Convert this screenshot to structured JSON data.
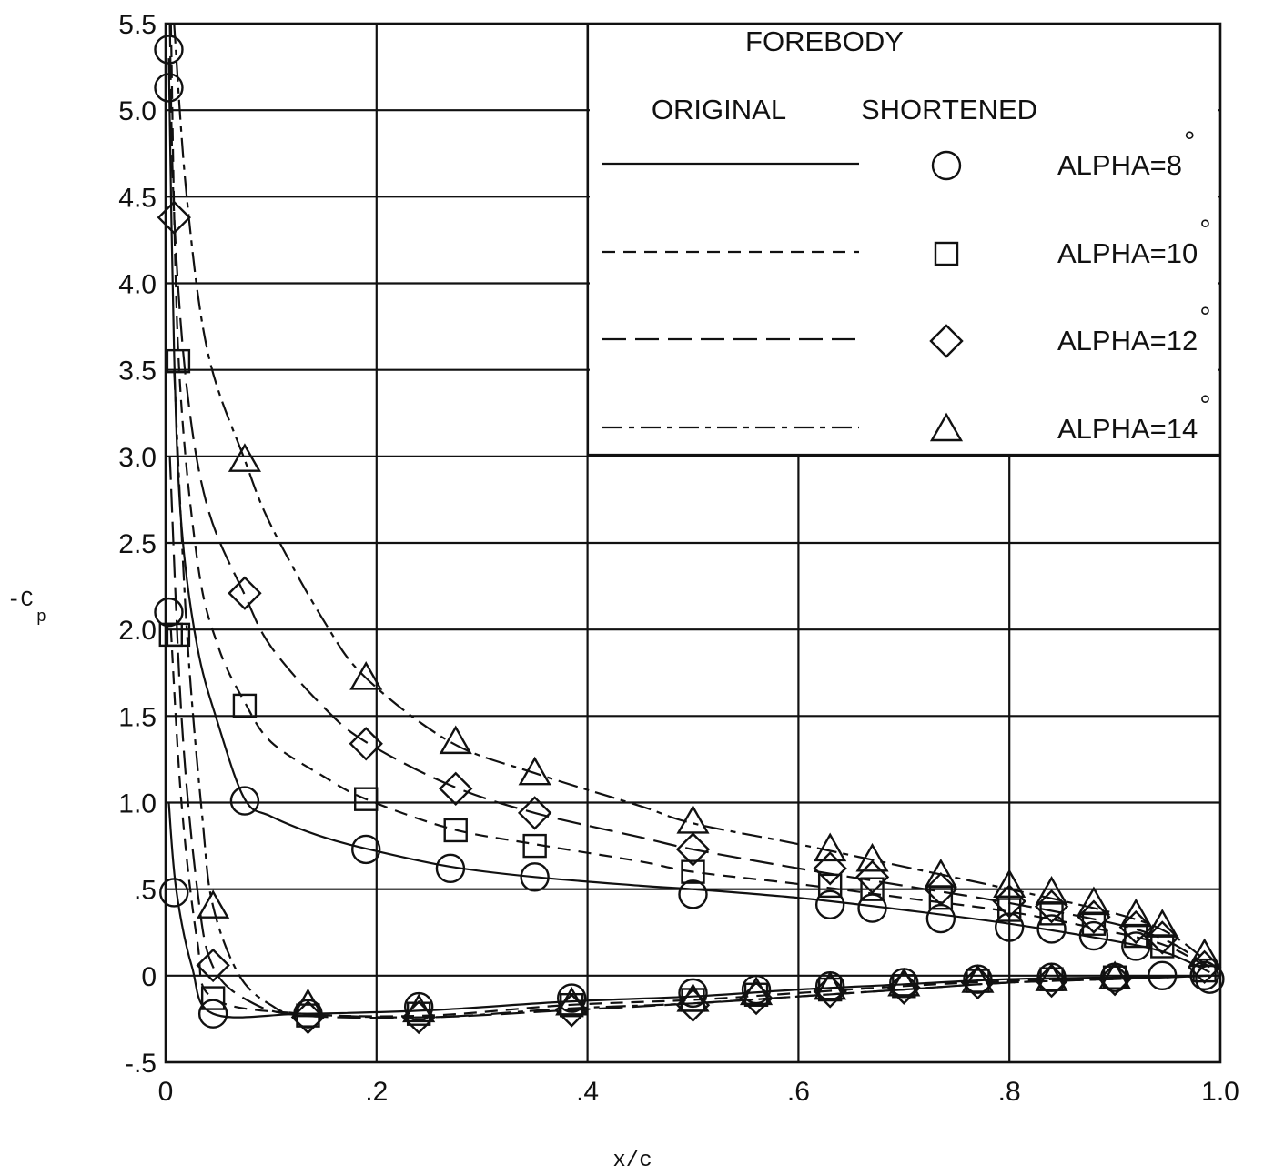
{
  "chart_data": {
    "type": "line",
    "title": "",
    "xlabel": "x/c",
    "ylabel_prefix": "-C",
    "ylabel_sub": "p",
    "xlim": [
      0,
      1.0
    ],
    "ylim": [
      -0.5,
      5.5
    ],
    "grid": true,
    "xticks": [
      "0",
      ".2",
      ".4",
      ".6",
      ".8",
      "1.0"
    ],
    "xtick_values": [
      0,
      0.2,
      0.4,
      0.6,
      0.8,
      1.0
    ],
    "yticks": [
      "-.5",
      "0",
      ".5",
      "1.0",
      "1.5",
      "2.0",
      "2.5",
      "3.0",
      "3.5",
      "4.0",
      "4.5",
      "5.0",
      "5.5"
    ],
    "ytick_values": [
      -0.5,
      0,
      0.5,
      1.0,
      1.5,
      2.0,
      2.5,
      3.0,
      3.5,
      4.0,
      4.5,
      5.0,
      5.5
    ],
    "legend": {
      "placement": "top-right",
      "title": "FOREBODY",
      "col_original": "ORIGINAL",
      "col_shortened": "SHORTENED",
      "degree": "°"
    },
    "series": [
      {
        "name": "ALPHA=8",
        "marker": "circle",
        "dash": "none",
        "upper_line": [
          [
            0.003,
            5.3
          ],
          [
            0.008,
            3.6
          ],
          [
            0.015,
            2.6
          ],
          [
            0.03,
            1.9
          ],
          [
            0.05,
            1.45
          ],
          [
            0.075,
            1.02
          ],
          [
            0.1,
            0.92
          ],
          [
            0.15,
            0.8
          ],
          [
            0.2,
            0.72
          ],
          [
            0.27,
            0.63
          ],
          [
            0.35,
            0.57
          ],
          [
            0.45,
            0.52
          ],
          [
            0.5,
            0.5
          ],
          [
            0.6,
            0.45
          ],
          [
            0.7,
            0.38
          ],
          [
            0.8,
            0.3
          ],
          [
            0.9,
            0.2
          ],
          [
            0.95,
            0.13
          ],
          [
            0.99,
            0.02
          ]
        ],
        "lower_line": [
          [
            0.003,
            1.0
          ],
          [
            0.01,
            0.5
          ],
          [
            0.025,
            0.05
          ],
          [
            0.045,
            -0.22
          ],
          [
            0.13,
            -0.22
          ],
          [
            0.25,
            -0.2
          ],
          [
            0.38,
            -0.15
          ],
          [
            0.5,
            -0.12
          ],
          [
            0.6,
            -0.08
          ],
          [
            0.7,
            -0.05
          ],
          [
            0.8,
            -0.02
          ],
          [
            0.9,
            -0.01
          ],
          [
            0.99,
            0.0
          ]
        ],
        "points": [
          [
            0.003,
            5.35
          ],
          [
            0.003,
            5.13
          ],
          [
            0.003,
            2.1
          ],
          [
            0.008,
            0.48
          ],
          [
            0.045,
            -0.22
          ],
          [
            0.075,
            1.01
          ],
          [
            0.135,
            -0.22
          ],
          [
            0.19,
            0.73
          ],
          [
            0.24,
            -0.18
          ],
          [
            0.27,
            0.62
          ],
          [
            0.35,
            0.57
          ],
          [
            0.385,
            -0.13
          ],
          [
            0.5,
            0.47
          ],
          [
            0.5,
            -0.1
          ],
          [
            0.56,
            -0.08
          ],
          [
            0.63,
            0.41
          ],
          [
            0.63,
            -0.06
          ],
          [
            0.67,
            0.39
          ],
          [
            0.7,
            -0.04
          ],
          [
            0.735,
            0.33
          ],
          [
            0.77,
            -0.02
          ],
          [
            0.8,
            0.28
          ],
          [
            0.84,
            0.27
          ],
          [
            0.84,
            -0.01
          ],
          [
            0.88,
            0.23
          ],
          [
            0.9,
            -0.01
          ],
          [
            0.92,
            0.17
          ],
          [
            0.945,
            0.0
          ],
          [
            0.985,
            0.0
          ],
          [
            0.99,
            -0.02
          ]
        ]
      },
      {
        "name": "ALPHA=10",
        "marker": "square",
        "dash": "dashed",
        "upper_line": [
          [
            0.005,
            5.5
          ],
          [
            0.012,
            3.6
          ],
          [
            0.03,
            2.4
          ],
          [
            0.05,
            1.9
          ],
          [
            0.075,
            1.58
          ],
          [
            0.1,
            1.35
          ],
          [
            0.15,
            1.15
          ],
          [
            0.19,
            1.02
          ],
          [
            0.27,
            0.85
          ],
          [
            0.35,
            0.76
          ],
          [
            0.45,
            0.66
          ],
          [
            0.5,
            0.6
          ],
          [
            0.6,
            0.53
          ],
          [
            0.7,
            0.45
          ],
          [
            0.8,
            0.37
          ],
          [
            0.9,
            0.25
          ],
          [
            0.95,
            0.17
          ],
          [
            0.99,
            0.04
          ]
        ],
        "lower_line": [
          [
            0.005,
            2.0
          ],
          [
            0.015,
            1.0
          ],
          [
            0.03,
            0.2
          ],
          [
            0.045,
            -0.13
          ],
          [
            0.13,
            -0.22
          ],
          [
            0.25,
            -0.23
          ],
          [
            0.38,
            -0.17
          ],
          [
            0.5,
            -0.14
          ],
          [
            0.6,
            -0.1
          ],
          [
            0.7,
            -0.06
          ],
          [
            0.8,
            -0.03
          ],
          [
            0.9,
            -0.01
          ],
          [
            0.99,
            0.0
          ]
        ],
        "points": [
          [
            0.012,
            3.55
          ],
          [
            0.005,
            1.97
          ],
          [
            0.012,
            1.97
          ],
          [
            0.045,
            -0.13
          ],
          [
            0.075,
            1.56
          ],
          [
            0.135,
            -0.23
          ],
          [
            0.19,
            1.02
          ],
          [
            0.24,
            -0.22
          ],
          [
            0.275,
            0.84
          ],
          [
            0.35,
            0.75
          ],
          [
            0.385,
            -0.17
          ],
          [
            0.5,
            0.6
          ],
          [
            0.5,
            -0.14
          ],
          [
            0.56,
            -0.11
          ],
          [
            0.63,
            0.52
          ],
          [
            0.63,
            -0.08
          ],
          [
            0.67,
            0.5
          ],
          [
            0.7,
            -0.06
          ],
          [
            0.735,
            0.45
          ],
          [
            0.77,
            -0.03
          ],
          [
            0.8,
            0.38
          ],
          [
            0.84,
            0.36
          ],
          [
            0.84,
            -0.02
          ],
          [
            0.88,
            0.3
          ],
          [
            0.9,
            -0.01
          ],
          [
            0.92,
            0.23
          ],
          [
            0.945,
            0.17
          ],
          [
            0.985,
            0.03
          ]
        ]
      },
      {
        "name": "ALPHA=12",
        "marker": "diamond",
        "dash": "longdash",
        "upper_line": [
          [
            0.004,
            5.5
          ],
          [
            0.008,
            4.4
          ],
          [
            0.02,
            3.4
          ],
          [
            0.04,
            2.7
          ],
          [
            0.075,
            2.2
          ],
          [
            0.1,
            1.9
          ],
          [
            0.15,
            1.55
          ],
          [
            0.19,
            1.35
          ],
          [
            0.27,
            1.1
          ],
          [
            0.35,
            0.94
          ],
          [
            0.45,
            0.8
          ],
          [
            0.5,
            0.73
          ],
          [
            0.6,
            0.62
          ],
          [
            0.7,
            0.52
          ],
          [
            0.8,
            0.42
          ],
          [
            0.9,
            0.3
          ],
          [
            0.95,
            0.2
          ],
          [
            0.99,
            0.05
          ]
        ],
        "lower_line": [
          [
            0.004,
            3.0
          ],
          [
            0.015,
            1.5
          ],
          [
            0.03,
            0.5
          ],
          [
            0.045,
            0.05
          ],
          [
            0.08,
            -0.15
          ],
          [
            0.13,
            -0.23
          ],
          [
            0.25,
            -0.24
          ],
          [
            0.38,
            -0.2
          ],
          [
            0.5,
            -0.16
          ],
          [
            0.6,
            -0.12
          ],
          [
            0.7,
            -0.08
          ],
          [
            0.8,
            -0.04
          ],
          [
            0.9,
            -0.02
          ],
          [
            0.99,
            0.0
          ]
        ],
        "points": [
          [
            0.008,
            4.38
          ],
          [
            0.045,
            0.06
          ],
          [
            0.075,
            2.21
          ],
          [
            0.135,
            -0.24
          ],
          [
            0.19,
            1.34
          ],
          [
            0.24,
            -0.24
          ],
          [
            0.275,
            1.08
          ],
          [
            0.35,
            0.94
          ],
          [
            0.385,
            -0.2
          ],
          [
            0.5,
            0.73
          ],
          [
            0.5,
            -0.17
          ],
          [
            0.56,
            -0.13
          ],
          [
            0.63,
            0.62
          ],
          [
            0.63,
            -0.09
          ],
          [
            0.67,
            0.57
          ],
          [
            0.7,
            -0.07
          ],
          [
            0.735,
            0.5
          ],
          [
            0.77,
            -0.04
          ],
          [
            0.8,
            0.43
          ],
          [
            0.84,
            0.4
          ],
          [
            0.84,
            -0.03
          ],
          [
            0.88,
            0.34
          ],
          [
            0.9,
            -0.02
          ],
          [
            0.92,
            0.28
          ],
          [
            0.945,
            0.22
          ],
          [
            0.985,
            0.05
          ]
        ]
      },
      {
        "name": "ALPHA=14",
        "marker": "triangle",
        "dash": "dashdot",
        "upper_line": [
          [
            0.008,
            5.5
          ],
          [
            0.02,
            4.5
          ],
          [
            0.04,
            3.6
          ],
          [
            0.075,
            2.98
          ],
          [
            0.1,
            2.6
          ],
          [
            0.15,
            2.05
          ],
          [
            0.19,
            1.72
          ],
          [
            0.27,
            1.35
          ],
          [
            0.35,
            1.17
          ],
          [
            0.45,
            0.98
          ],
          [
            0.5,
            0.88
          ],
          [
            0.6,
            0.76
          ],
          [
            0.7,
            0.63
          ],
          [
            0.8,
            0.5
          ],
          [
            0.9,
            0.36
          ],
          [
            0.95,
            0.25
          ],
          [
            0.99,
            0.07
          ]
        ],
        "lower_line": [
          [
            0.008,
            3.5
          ],
          [
            0.02,
            2.0
          ],
          [
            0.035,
            0.9
          ],
          [
            0.045,
            0.4
          ],
          [
            0.07,
            0.0
          ],
          [
            0.1,
            -0.17
          ],
          [
            0.13,
            -0.22
          ],
          [
            0.25,
            -0.24
          ],
          [
            0.38,
            -0.19
          ],
          [
            0.5,
            -0.16
          ],
          [
            0.6,
            -0.12
          ],
          [
            0.7,
            -0.08
          ],
          [
            0.8,
            -0.04
          ],
          [
            0.9,
            -0.02
          ],
          [
            0.99,
            0.0
          ]
        ],
        "points": [
          [
            0.045,
            0.4
          ],
          [
            0.075,
            2.98
          ],
          [
            0.135,
            -0.17
          ],
          [
            0.19,
            1.72
          ],
          [
            0.24,
            -0.2
          ],
          [
            0.275,
            1.35
          ],
          [
            0.35,
            1.17
          ],
          [
            0.385,
            -0.16
          ],
          [
            0.5,
            0.89
          ],
          [
            0.5,
            -0.14
          ],
          [
            0.56,
            -0.1
          ],
          [
            0.63,
            0.73
          ],
          [
            0.63,
            -0.07
          ],
          [
            0.67,
            0.67
          ],
          [
            0.7,
            -0.05
          ],
          [
            0.735,
            0.58
          ],
          [
            0.77,
            -0.03
          ],
          [
            0.8,
            0.52
          ],
          [
            0.84,
            0.48
          ],
          [
            0.84,
            -0.02
          ],
          [
            0.88,
            0.42
          ],
          [
            0.9,
            -0.01
          ],
          [
            0.92,
            0.35
          ],
          [
            0.945,
            0.29
          ],
          [
            0.985,
            0.12
          ]
        ]
      }
    ]
  }
}
